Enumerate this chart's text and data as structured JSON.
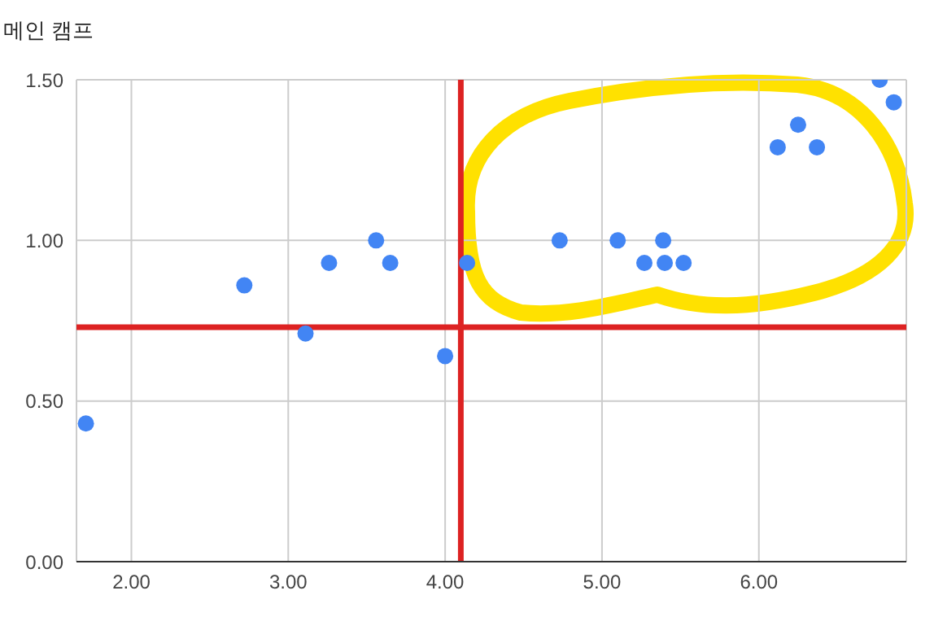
{
  "chart_data": {
    "type": "scatter",
    "title": "메인 캠프",
    "series": [
      {
        "color": "#4285f4",
        "x": [
          1.71,
          2.72,
          3.11,
          3.26,
          3.56,
          3.65,
          4.0,
          4.14,
          4.73,
          5.1,
          5.27,
          5.39,
          5.4,
          5.52,
          6.12,
          6.25,
          6.37,
          6.77,
          6.86
        ],
        "values": [
          0.43,
          0.86,
          0.71,
          0.93,
          1.0,
          0.93,
          0.64,
          0.93,
          1.0,
          1.0,
          0.93,
          1.0,
          0.93,
          0.93,
          1.29,
          1.36,
          1.29,
          1.5,
          1.43
        ]
      }
    ],
    "xlim": [
      1.65,
      6.94
    ],
    "xticks": [
      {
        "value": 2,
        "label": "2.00"
      },
      {
        "value": 3,
        "label": "3.00"
      },
      {
        "value": 4,
        "label": "4.00"
      },
      {
        "value": 5,
        "label": "5.00"
      },
      {
        "value": 6,
        "label": "6.00"
      }
    ],
    "ylim": [
      0,
      1.5
    ],
    "yticks": [
      {
        "value": 0,
        "label": "0.00"
      },
      {
        "value": 0.5,
        "label": "0.50"
      },
      {
        "value": 1,
        "label": "1.00"
      },
      {
        "value": 1.5,
        "label": "1.50"
      }
    ],
    "ref_lines": [
      {
        "axis": "x",
        "value": 4.1,
        "color": "#dd2222"
      },
      {
        "axis": "y",
        "value": 0.73,
        "color": "#dd2222"
      }
    ],
    "grid": true,
    "marker": "circle"
  }
}
